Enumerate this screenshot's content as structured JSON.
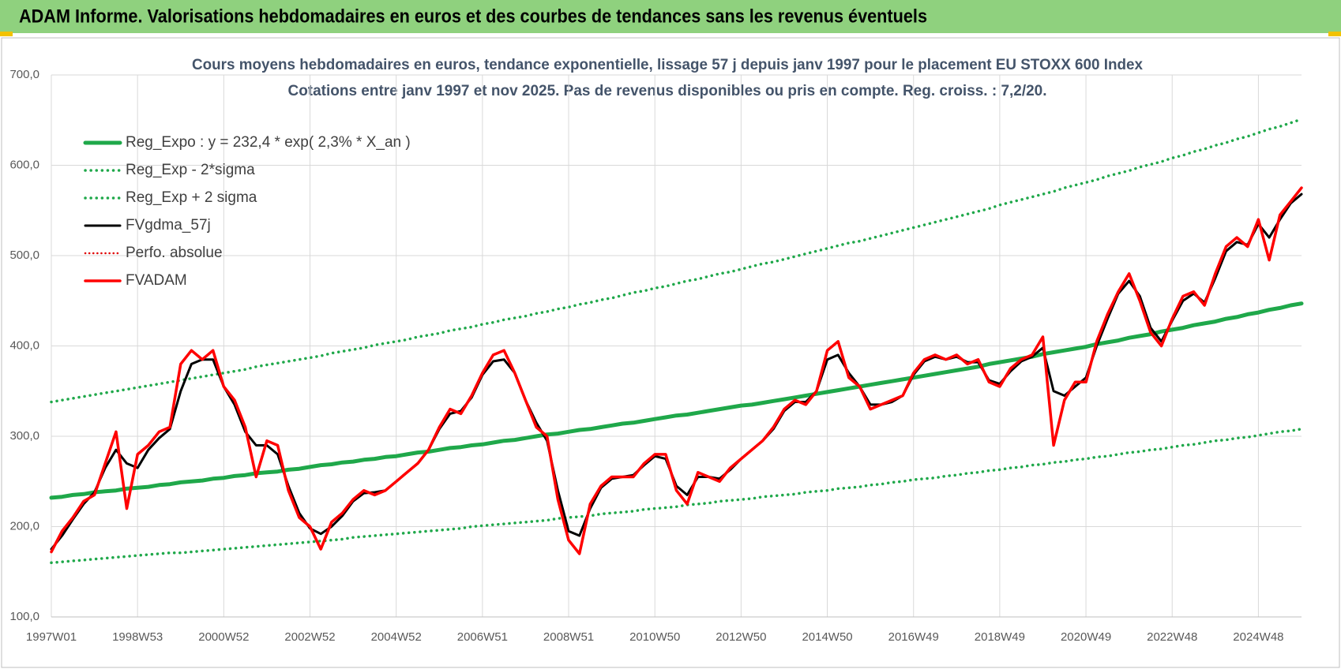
{
  "header": {
    "title": "ADAM Informe. Valorisations hebdomadaires en euros et des courbes de tendances sans les revenus éventuels"
  },
  "chart_data": {
    "type": "line",
    "title": "Cours moyens hebdomadaires en euros, tendance exponentielle, lissage 57 j depuis janv 1997  pour le  placement EU STOXX 600 Index",
    "subtitle": "Cotations entre janv 1997 et nov 2025. Pas de revenus disponibles ou pris en compte. Reg. croiss. : 7,2/20.",
    "categories": [
      "1997W01",
      null,
      null,
      null,
      null,
      null,
      null,
      null,
      "1998W53",
      null,
      null,
      null,
      null,
      null,
      null,
      null,
      "2000W52",
      null,
      null,
      null,
      null,
      null,
      null,
      null,
      "2002W52",
      null,
      null,
      null,
      null,
      null,
      null,
      null,
      "2004W52",
      null,
      null,
      null,
      null,
      null,
      null,
      null,
      "2006W51",
      null,
      null,
      null,
      null,
      null,
      null,
      null,
      "2008W51",
      null,
      null,
      null,
      null,
      null,
      null,
      null,
      "2010W50",
      null,
      null,
      null,
      null,
      null,
      null,
      null,
      "2012W50",
      null,
      null,
      null,
      null,
      null,
      null,
      null,
      "2014W50",
      null,
      null,
      null,
      null,
      null,
      null,
      null,
      "2016W49",
      null,
      null,
      null,
      null,
      null,
      null,
      null,
      "2018W49",
      null,
      null,
      null,
      null,
      null,
      null,
      null,
      "2020W49",
      null,
      null,
      null,
      null,
      null,
      null,
      null,
      "2022W48",
      null,
      null,
      null,
      null,
      null,
      null,
      null,
      "2024W48",
      null,
      null,
      null,
      null
    ],
    "ylim": [
      100,
      700
    ],
    "yticks": [
      {
        "value": 100,
        "label": "100,0"
      },
      {
        "value": 200,
        "label": "200,0"
      },
      {
        "value": 300,
        "label": "300,0"
      },
      {
        "value": 400,
        "label": "400,0"
      },
      {
        "value": 500,
        "label": "500,0"
      },
      {
        "value": 600,
        "label": "600,0"
      },
      {
        "value": 700,
        "label": "700,0"
      }
    ],
    "grid": true,
    "legend": "upper left",
    "series": [
      {
        "name": "Reg_Expo : y = 232,4 * exp( 2,3% *  X_an )",
        "color": "#1fa84a",
        "line_style": "solid",
        "width": 5,
        "values": [
          232,
          233,
          235,
          236,
          238,
          239,
          240,
          242,
          243,
          244,
          246,
          247,
          249,
          250,
          251,
          253,
          254,
          256,
          257,
          259,
          260,
          261,
          263,
          264,
          266,
          268,
          269,
          271,
          272,
          274,
          275,
          277,
          278,
          280,
          282,
          283,
          285,
          287,
          288,
          290,
          291,
          293,
          295,
          296,
          298,
          300,
          302,
          303,
          305,
          307,
          308,
          310,
          312,
          314,
          315,
          317,
          319,
          321,
          323,
          324,
          326,
          328,
          330,
          332,
          334,
          335,
          337,
          339,
          341,
          343,
          345,
          347,
          349,
          351,
          353,
          355,
          357,
          359,
          361,
          363,
          365,
          367,
          369,
          371,
          373,
          375,
          377,
          380,
          382,
          384,
          386,
          388,
          391,
          393,
          395,
          397,
          399,
          402,
          404,
          406,
          409,
          411,
          413,
          416,
          418,
          420,
          423,
          425,
          427,
          430,
          432,
          435,
          437,
          440,
          442,
          445,
          447
        ]
      },
      {
        "name": "Reg_Exp - 2*sigma",
        "color": "#1fa84a",
        "line_style": "dotted",
        "width": 3.5,
        "values": [
          160,
          161,
          162,
          163,
          164,
          165,
          166,
          167,
          168,
          169,
          170,
          171,
          171,
          172,
          173,
          174,
          175,
          176,
          177,
          178,
          179,
          180,
          181,
          182,
          183,
          184,
          185,
          186,
          188,
          189,
          190,
          191,
          192,
          193,
          194,
          195,
          196,
          197,
          198,
          200,
          201,
          202,
          203,
          204,
          205,
          206,
          207,
          209,
          210,
          211,
          212,
          214,
          215,
          216,
          217,
          219,
          220,
          221,
          222,
          224,
          225,
          226,
          228,
          229,
          230,
          231,
          233,
          234,
          235,
          236,
          238,
          239,
          240,
          242,
          243,
          244,
          246,
          247,
          249,
          250,
          252,
          253,
          254,
          256,
          257,
          259,
          260,
          262,
          263,
          265,
          266,
          268,
          269,
          271,
          272,
          274,
          275,
          277,
          278,
          280,
          282,
          283,
          285,
          286,
          288,
          290,
          291,
          293,
          295,
          296,
          298,
          299,
          301,
          303,
          305,
          306,
          308
        ]
      },
      {
        "name": "Reg_Exp + 2 sigma",
        "color": "#1fa84a",
        "line_style": "dotted",
        "width": 3.5,
        "values": [
          338,
          340,
          342,
          344,
          346,
          348,
          350,
          352,
          354,
          356,
          358,
          360,
          362,
          364,
          366,
          368,
          370,
          372,
          374,
          377,
          379,
          381,
          383,
          385,
          387,
          389,
          392,
          394,
          396,
          398,
          401,
          403,
          405,
          407,
          410,
          412,
          414,
          417,
          419,
          421,
          424,
          426,
          429,
          431,
          433,
          436,
          438,
          441,
          443,
          446,
          448,
          451,
          453,
          456,
          459,
          461,
          464,
          466,
          469,
          472,
          474,
          477,
          480,
          482,
          485,
          488,
          491,
          493,
          496,
          499,
          502,
          505,
          508,
          511,
          514,
          516,
          519,
          522,
          525,
          528,
          531,
          534,
          537,
          540,
          543,
          546,
          549,
          552,
          556,
          559,
          562,
          565,
          568,
          571,
          575,
          578,
          581,
          584,
          588,
          591,
          594,
          598,
          601,
          604,
          608,
          611,
          615,
          618,
          622,
          625,
          629,
          632,
          636,
          640,
          643,
          647,
          651
        ]
      },
      {
        "name": "FVgdma_57j",
        "color": "#000000",
        "line_style": "solid",
        "width": 3,
        "values": [
          175,
          190,
          208,
          225,
          238,
          265,
          285,
          270,
          265,
          285,
          298,
          308,
          350,
          380,
          385,
          385,
          355,
          335,
          305,
          290,
          290,
          280,
          245,
          215,
          198,
          192,
          200,
          212,
          228,
          237,
          238,
          240,
          250,
          260,
          270,
          285,
          308,
          325,
          328,
          343,
          368,
          383,
          385,
          370,
          340,
          315,
          295,
          240,
          195,
          190,
          220,
          243,
          253,
          255,
          257,
          268,
          278,
          275,
          245,
          235,
          255,
          255,
          253,
          263,
          275,
          285,
          295,
          308,
          328,
          338,
          338,
          350,
          385,
          390,
          370,
          355,
          335,
          335,
          338,
          345,
          368,
          383,
          388,
          385,
          388,
          382,
          382,
          362,
          358,
          372,
          383,
          388,
          398,
          350,
          345,
          355,
          365,
          400,
          430,
          458,
          472,
          455,
          420,
          405,
          428,
          450,
          458,
          448,
          475,
          505,
          515,
          512,
          535,
          520,
          540,
          558,
          568
        ]
      },
      {
        "name": "Perfo. absolue",
        "color": "#e00000",
        "line_style": "dotted",
        "width": 2.5,
        "values": [
          172,
          195,
          210,
          228,
          235,
          270,
          305,
          220,
          280,
          290,
          305,
          310,
          380,
          395,
          385,
          395,
          355,
          340,
          310,
          255,
          295,
          290,
          240,
          210,
          200,
          175,
          205,
          215,
          230,
          240,
          235,
          240,
          250,
          260,
          270,
          285,
          310,
          330,
          325,
          345,
          370,
          390,
          395,
          370,
          340,
          310,
          300,
          230,
          185,
          170,
          225,
          245,
          255,
          255,
          255,
          270,
          280,
          280,
          240,
          225,
          260,
          255,
          250,
          265,
          275,
          285,
          295,
          310,
          330,
          340,
          335,
          350,
          395,
          405,
          365,
          355,
          330,
          335,
          340,
          345,
          370,
          385,
          390,
          385,
          390,
          380,
          385,
          360,
          355,
          375,
          385,
          390,
          410,
          290,
          340,
          360,
          360,
          405,
          435,
          460,
          480,
          450,
          415,
          400,
          430,
          455,
          460,
          445,
          480,
          510,
          520,
          510,
          540,
          495,
          545,
          560,
          575
        ]
      },
      {
        "name": "FVADAM",
        "color": "#ff0000",
        "line_style": "solid",
        "width": 3.5,
        "values": [
          172,
          195,
          210,
          228,
          235,
          270,
          305,
          220,
          280,
          290,
          305,
          310,
          380,
          395,
          385,
          395,
          355,
          340,
          310,
          255,
          295,
          290,
          240,
          210,
          200,
          175,
          205,
          215,
          230,
          240,
          235,
          240,
          250,
          260,
          270,
          285,
          310,
          330,
          325,
          345,
          370,
          390,
          395,
          370,
          340,
          310,
          300,
          230,
          185,
          170,
          225,
          245,
          255,
          255,
          255,
          270,
          280,
          280,
          240,
          225,
          260,
          255,
          250,
          265,
          275,
          285,
          295,
          310,
          330,
          340,
          335,
          350,
          395,
          405,
          365,
          355,
          330,
          335,
          340,
          345,
          370,
          385,
          390,
          385,
          390,
          380,
          385,
          360,
          355,
          375,
          385,
          390,
          410,
          290,
          340,
          360,
          360,
          405,
          435,
          460,
          480,
          450,
          415,
          400,
          430,
          455,
          460,
          445,
          480,
          510,
          520,
          510,
          540,
          495,
          545,
          560,
          575
        ]
      }
    ]
  }
}
